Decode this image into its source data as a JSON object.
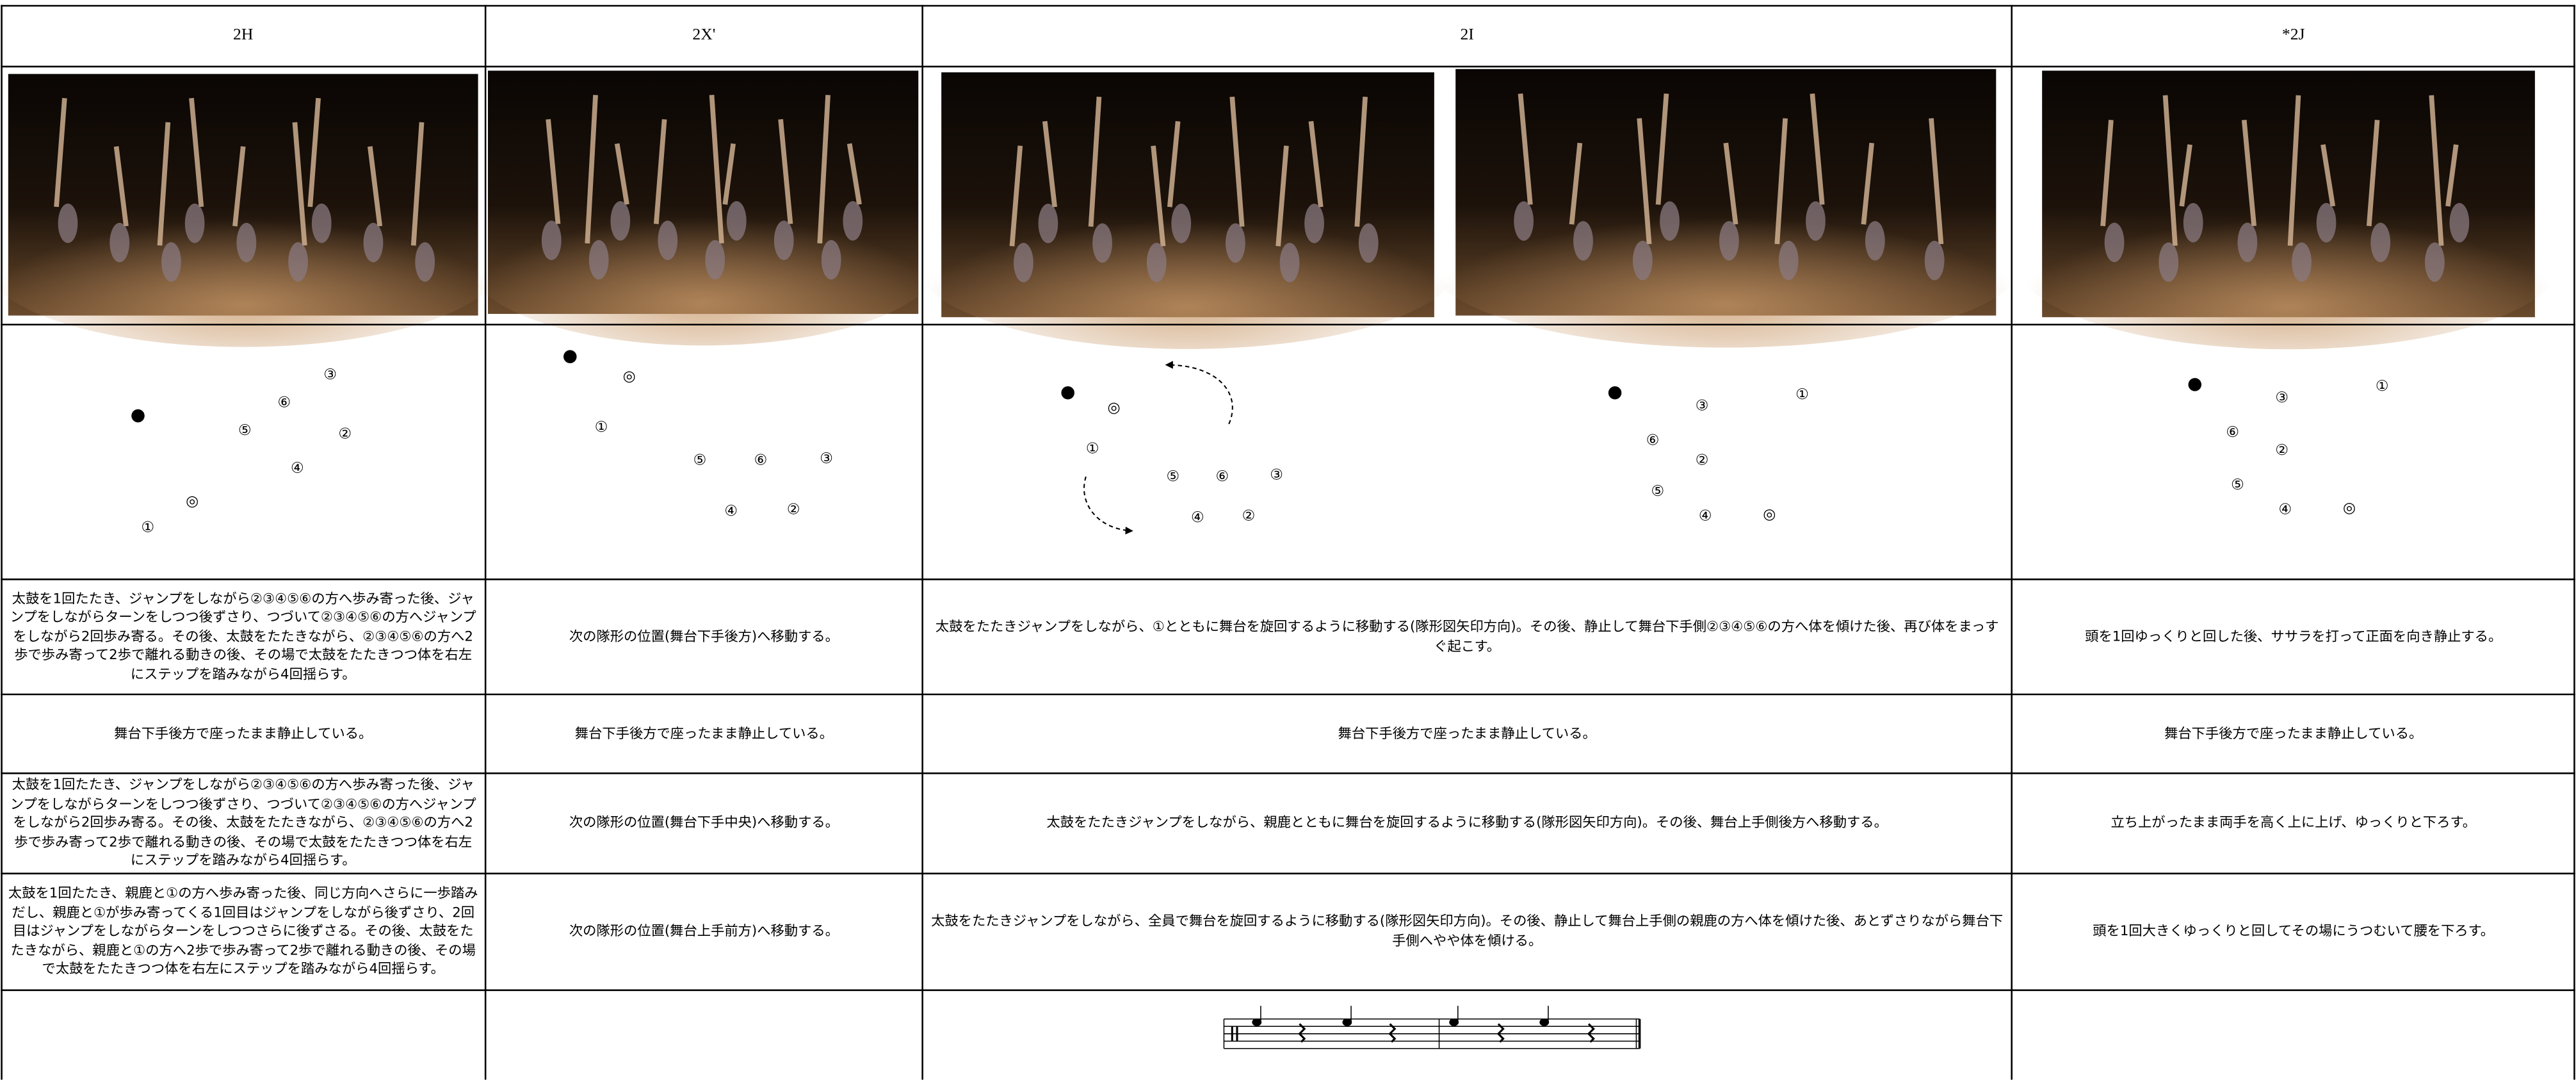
{
  "table": {
    "headers": [
      "2H",
      "2X'",
      "2I",
      "*2J"
    ],
    "diagrams": [
      [
        "⑥",
        "③",
        "⑤",
        "②",
        "④",
        "◎",
        "①"
      ],
      [
        "◎",
        "①",
        "⑤",
        "⑥",
        "③",
        "④",
        "②"
      ],
      [
        "◎",
        "①",
        "⑤",
        "⑥",
        "③",
        "④",
        "②"
      ],
      [
        "③",
        "①",
        "⑥",
        "②",
        "⑤",
        "④",
        "◎"
      ],
      [
        "③",
        "①",
        "⑥",
        "②",
        "⑤",
        "④",
        "◎"
      ]
    ],
    "rows": [
      [
        "太鼓を1回たたき、ジャンプをしながら②③④⑤⑥の方へ歩み寄った後、ジャンプをしながらターンをしつつ後ずさり、つづいて②③④⑤⑥の方へジャンプをしながら2回歩み寄る。その後、太鼓をたたきながら、②③④⑤⑥の方へ2歩で歩み寄って2歩で離れる動きの後、その場で太鼓をたたきつつ体を右左にステップを踏みながら4回揺らす。",
        "次の隊形の位置(舞台下手後方)へ移動する。",
        "太鼓をたたきジャンプをしながら、①とともに舞台を旋回するように移動する(隊形図矢印方向)。その後、静止して舞台下手側②③④⑤⑥の方へ体を傾けた後、再び体をまっすぐ起こす。",
        "頭を1回ゆっくりと回した後、ササラを打って正面を向き静止する。"
      ],
      [
        "舞台下手後方で座ったまま静止している。",
        "舞台下手後方で座ったまま静止している。",
        "舞台下手後方で座ったまま静止している。",
        "舞台下手後方で座ったまま静止している。"
      ],
      [
        "太鼓を1回たたき、ジャンプをしながら②③④⑤⑥の方へ歩み寄った後、ジャンプをしながらターンをしつつ後ずさり、つづいて②③④⑤⑥の方へジャンプをしながら2回歩み寄る。その後、太鼓をたたきながら、②③④⑤⑥の方へ2歩で歩み寄って2歩で離れる動きの後、その場で太鼓をたたきつつ体を右左にステップを踏みながら4回揺らす。",
        "次の隊形の位置(舞台下手中央)へ移動する。",
        "太鼓をたたきジャンプをしながら、親鹿とともに舞台を旋回するように移動する(隊形図矢印方向)。その後、舞台上手側後方へ移動する。",
        "立ち上がったまま両手を高く上に上げ、ゆっくりと下ろす。"
      ],
      [
        "太鼓を1回たたき、親鹿と①の方へ歩み寄った後、同じ方向へさらに一歩踏みだし、親鹿と①が歩み寄ってくる1回目はジャンプをしながら後ずさり、2回目はジャンプをしながらターンをしつつさらに後ずさる。その後、太鼓をたたきながら、親鹿と①の方へ2歩で歩み寄って2歩で離れる動きの後、その場で太鼓をたたきつつ体を右左にステップを踏みながら4回揺らす。",
        "次の隊形の位置(舞台上手前方)へ移動する。",
        "太鼓をたたきジャンプをしながら、全員で舞台を旋回するように移動する(隊形図矢印方向)。その後、静止して舞台上手側の親鹿の方へ体を傾けた後、あとずさりながら舞台下手側へやや体を傾ける。",
        "頭を1回大きくゆっくりと回してその場にうつむいて腰を下ろす。"
      ]
    ]
  }
}
